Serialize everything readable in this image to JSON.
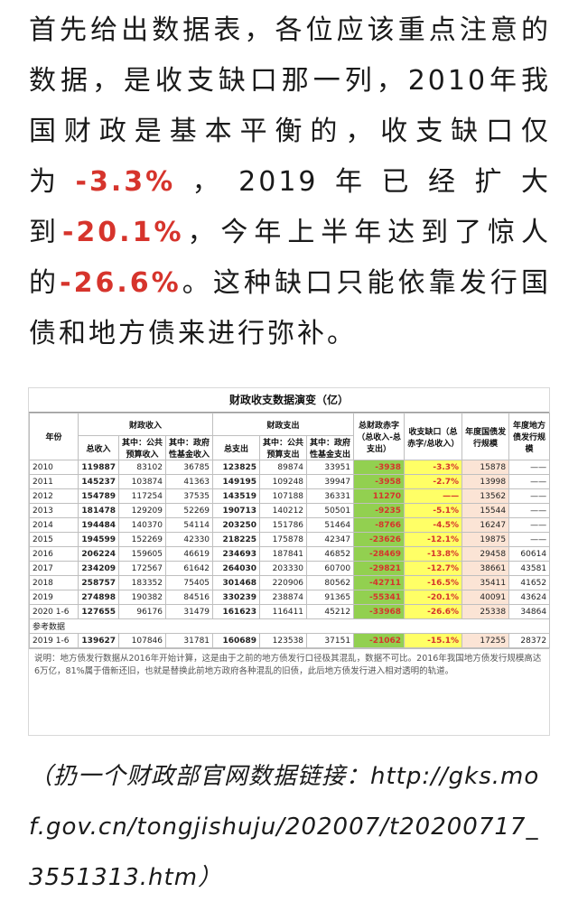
{
  "article": {
    "para_part1": "首先给出数据表，各位应该重点注意的数据，是收支缺口那一列，2010年我国财政是基本平衡的，收支缺口仅为",
    "red1": "-3.3%",
    "para_part2": "，2019年已经扩大到",
    "red2": "-20.1%",
    "para_part3": "，今年上半年达到了惊人的",
    "red3": "-26.6%",
    "para_part4": "。这种缺口只能依靠发行国债和地方债来进行弥补。"
  },
  "table": {
    "title": "财政收支数据演变（亿）",
    "headers": {
      "year": "年份",
      "revenue_group": "财政收入",
      "expense_group": "财政支出",
      "total_revenue": "总收入",
      "public_budget_rev": "其中：公共预算收入",
      "gov_fund_rev": "其中：政府性基金收入",
      "total_expense": "总支出",
      "public_budget_exp": "其中：公共预算支出",
      "gov_fund_exp": "其中：政府性基金支出",
      "deficit": "总财政赤字（总收入-总支出）",
      "gap": "收支缺口（总赤字/总收入）",
      "national_bond": "年度国债发行规模",
      "local_bond": "年度地方债发行规模"
    },
    "rows": [
      {
        "year": "2010",
        "c1": "119887",
        "c2": "83102",
        "c3": "36785",
        "c4": "123825",
        "c5": "89874",
        "c6": "33951",
        "c7": "-3938",
        "c8": "-3.3%",
        "c9": "15878",
        "c10": "——"
      },
      {
        "year": "2011",
        "c1": "145237",
        "c2": "103874",
        "c3": "41363",
        "c4": "149195",
        "c5": "109248",
        "c6": "39947",
        "c7": "-3958",
        "c8": "-2.7%",
        "c9": "13998",
        "c10": "——"
      },
      {
        "year": "2012",
        "c1": "154789",
        "c2": "117254",
        "c3": "37535",
        "c4": "143519",
        "c5": "107188",
        "c6": "36331",
        "c7": "11270",
        "c8": "——",
        "c9": "13562",
        "c10": "——"
      },
      {
        "year": "2013",
        "c1": "181478",
        "c2": "129209",
        "c3": "52269",
        "c4": "190713",
        "c5": "140212",
        "c6": "50501",
        "c7": "-9235",
        "c8": "-5.1%",
        "c9": "15544",
        "c10": "——"
      },
      {
        "year": "2014",
        "c1": "194484",
        "c2": "140370",
        "c3": "54114",
        "c4": "203250",
        "c5": "151786",
        "c6": "51464",
        "c7": "-8766",
        "c8": "-4.5%",
        "c9": "16247",
        "c10": "——"
      },
      {
        "year": "2015",
        "c1": "194599",
        "c2": "152269",
        "c3": "42330",
        "c4": "218225",
        "c5": "175878",
        "c6": "42347",
        "c7": "-23626",
        "c8": "-12.1%",
        "c9": "19875",
        "c10": "——"
      },
      {
        "year": "2016",
        "c1": "206224",
        "c2": "159605",
        "c3": "46619",
        "c4": "234693",
        "c5": "187841",
        "c6": "46852",
        "c7": "-28469",
        "c8": "-13.8%",
        "c9": "29458",
        "c10": "60614"
      },
      {
        "year": "2017",
        "c1": "234209",
        "c2": "172567",
        "c3": "61642",
        "c4": "264030",
        "c5": "203330",
        "c6": "60700",
        "c7": "-29821",
        "c8": "-12.7%",
        "c9": "38661",
        "c10": "43581"
      },
      {
        "year": "2018",
        "c1": "258757",
        "c2": "183352",
        "c3": "75405",
        "c4": "301468",
        "c5": "220906",
        "c6": "80562",
        "c7": "-42711",
        "c8": "-16.5%",
        "c9": "35411",
        "c10": "41652"
      },
      {
        "year": "2019",
        "c1": "274898",
        "c2": "190382",
        "c3": "84516",
        "c4": "330239",
        "c5": "238874",
        "c6": "91365",
        "c7": "-55341",
        "c8": "-20.1%",
        "c9": "40091",
        "c10": "43624"
      },
      {
        "year": "2020 1-6",
        "c1": "127655",
        "c2": "96176",
        "c3": "31479",
        "c4": "161623",
        "c5": "116411",
        "c6": "45212",
        "c7": "-33968",
        "c8": "-26.6%",
        "c9": "25338",
        "c10": "34864"
      }
    ],
    "ref_label": "参考数据",
    "ref_row": {
      "year": "2019 1-6",
      "c1": "139627",
      "c2": "107846",
      "c3": "31781",
      "c4": "160689",
      "c5": "123538",
      "c6": "37151",
      "c7": "-21062",
      "c8": "-15.1%",
      "c9": "17255",
      "c10": "28372"
    },
    "note": "说明：地方债发行数据从2016年开始计算，这是由于之前的地方债发行口径极其混乱，数据不可比。2016年我国地方债发行规模高达6万亿，81%属于借新还旧，也就是替换此前地方政府各种混乱的旧债，此后地方债发行进入相对透明的轨道。"
  },
  "source": {
    "text": "（扔一个财政部官网数据链接：http://gks.mof.gov.cn/tongjishuju/202007/t20200717_3551313.htm）"
  }
}
